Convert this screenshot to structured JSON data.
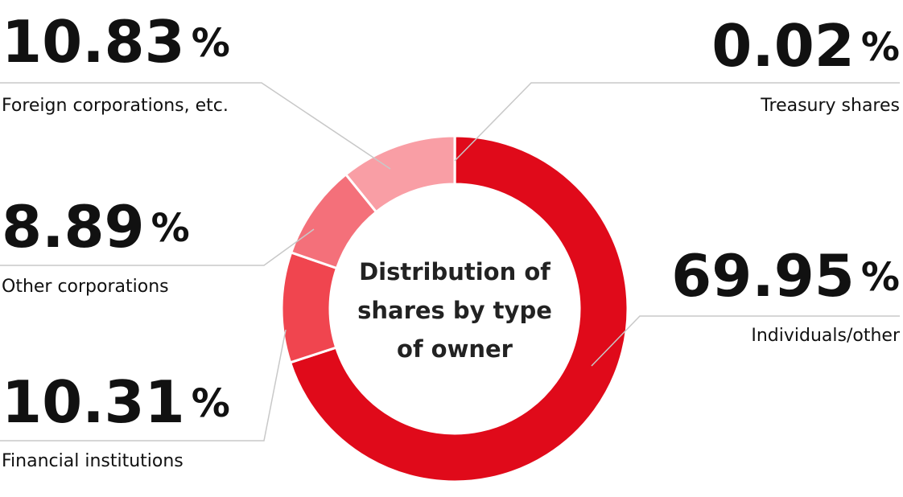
{
  "chart_data": {
    "type": "donut",
    "title": "Distribution of shares by type of owner",
    "unit": "%",
    "categories": [
      "Treasury shares",
      "Individuals/other",
      "Financial institutions",
      "Other corporations",
      "Foreign corporations, etc."
    ],
    "values": [
      0.02,
      69.95,
      10.31,
      8.89,
      10.83
    ],
    "colors": [
      "#e00a1a",
      "#e00a1a",
      "#f0454f",
      "#f4707a",
      "#f99ea5"
    ]
  }
}
